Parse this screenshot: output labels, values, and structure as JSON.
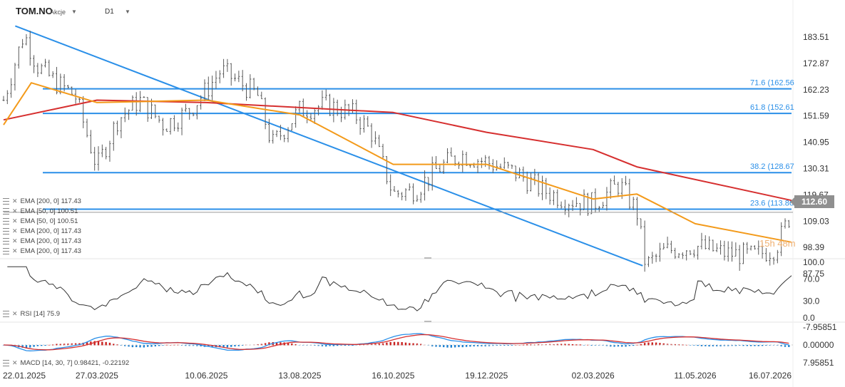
{
  "header": {
    "symbol": "TOM.NO",
    "type": "Akcje",
    "timeframe": "D1"
  },
  "price_tag": "112.60",
  "countdown": "15h 48m",
  "indicators": [
    "EMA [200, 0] 117.43",
    "EMA [50, 0] 100.51",
    "EMA [50, 0] 100.51",
    "EMA [200, 0] 117.43",
    "EMA [200, 0] 117.43",
    "EMA [200, 0] 117.43"
  ],
  "rsi_label": "RSI [14] 75.9",
  "macd_label": "MACD [14, 30, 7] 0.98421, -0.22192",
  "colors": {
    "ema200": "#d62f2f",
    "ema50": "#f39a1a",
    "trend": "#2a8fe8",
    "candle": "#5a5a5a",
    "up": "#1a7fd0",
    "down": "#c8201e"
  },
  "chart_data": [
    {
      "type": "candlestick",
      "name": "price",
      "x_ticks": [
        "22.01.2025",
        "27.03.2025",
        "10.06.2025",
        "13.08.2025",
        "16.10.2025",
        "19.12.2025",
        "02.03.2026",
        "11.05.2026",
        "16.07.2026"
      ],
      "y_ticks": [
        183.51,
        172.87,
        162.23,
        151.59,
        140.95,
        130.31,
        119.67,
        109.03,
        98.39,
        87.75
      ],
      "ylim": [
        85,
        190
      ],
      "close_path": [
        [
          "22.01.2025",
          158
        ],
        [
          "05.02.2025",
          185
        ],
        [
          "14.02.2025",
          172
        ],
        [
          "27.02.2025",
          165
        ],
        [
          "12.03.2025",
          160
        ],
        [
          "27.03.2025",
          131
        ],
        [
          "10.04.2025",
          150
        ],
        [
          "25.04.2025",
          158
        ],
        [
          "12.05.2025",
          148
        ],
        [
          "28.05.2025",
          153
        ],
        [
          "10.06.2025",
          162
        ],
        [
          "20.06.2025",
          170
        ],
        [
          "03.07.2025",
          165
        ],
        [
          "15.07.2025",
          160
        ],
        [
          "25.07.2025",
          140
        ],
        [
          "13.08.2025",
          154
        ],
        [
          "01.09.2025",
          156
        ],
        [
          "20.09.2025",
          152
        ],
        [
          "01.10.2025",
          145
        ],
        [
          "16.10.2025",
          120
        ],
        [
          "01.11.2025",
          122
        ],
        [
          "15.11.2025",
          130
        ],
        [
          "01.12.2025",
          136
        ],
        [
          "19.12.2025",
          133
        ],
        [
          "10.01.2026",
          128
        ],
        [
          "25.01.2026",
          122
        ],
        [
          "10.02.2026",
          118
        ],
        [
          "02.03.2026",
          116
        ],
        [
          "20.03.2026",
          124
        ],
        [
          "01.04.2026",
          113
        ],
        [
          "07.04.2026",
          91
        ],
        [
          "20.04.2026",
          97
        ],
        [
          "11.05.2026",
          99
        ],
        [
          "01.06.2026",
          96
        ],
        [
          "20.06.2026",
          95
        ],
        [
          "05.07.2026",
          98
        ],
        [
          "16.07.2026",
          112.6
        ]
      ],
      "lines": [
        {
          "name": "EMA [200, 0]",
          "end_value": 117.43,
          "color": "#d62f2f",
          "points": [
            [
              "22.01.2025",
              150
            ],
            [
              "27.03.2025",
              158
            ],
            [
              "10.06.2025",
              157
            ],
            [
              "13.08.2025",
              155
            ],
            [
              "16.10.2025",
              153
            ],
            [
              "19.12.2025",
              145
            ],
            [
              "02.03.2026",
              138
            ],
            [
              "01.04.2026",
              131
            ],
            [
              "16.07.2026",
              117.43
            ]
          ]
        },
        {
          "name": "EMA [50, 0]",
          "end_value": 100.51,
          "color": "#f39a1a",
          "points": [
            [
              "22.01.2025",
              148
            ],
            [
              "10.02.2025",
              165
            ],
            [
              "27.03.2025",
              157
            ],
            [
              "10.06.2025",
              158
            ],
            [
              "13.08.2025",
              152
            ],
            [
              "16.10.2025",
              132
            ],
            [
              "19.12.2025",
              132
            ],
            [
              "02.03.2026",
              118
            ],
            [
              "01.04.2026",
              120
            ],
            [
              "11.05.2026",
              108
            ],
            [
              "16.07.2026",
              100.51
            ]
          ]
        }
      ],
      "trendline": [
        [
          "30.01.2025",
          188
        ],
        [
          "05.04.2026",
          91
        ]
      ],
      "fib_levels": [
        {
          "label": "71.6 (162.56",
          "value": 162.56
        },
        {
          "label": "61.8 (152.61",
          "value": 152.61
        },
        {
          "label": "38.2 (128.67",
          "value": 128.67
        },
        {
          "label": "23.6 (113.86",
          "value": 113.86
        }
      ]
    },
    {
      "type": "line",
      "name": "RSI [14]",
      "y_ticks": [
        100.0,
        70.0,
        30.0,
        0.0
      ],
      "ylim": [
        0,
        100
      ],
      "last_value": 75.9
    },
    {
      "type": "bar",
      "name": "MACD [14, 30, 7]",
      "y_ticks": [
        7.95851,
        0.0,
        -7.95851
      ],
      "ylim": [
        -7.95851,
        7.95851
      ],
      "macd_last": 0.98421,
      "signal_last": -0.22192
    }
  ]
}
